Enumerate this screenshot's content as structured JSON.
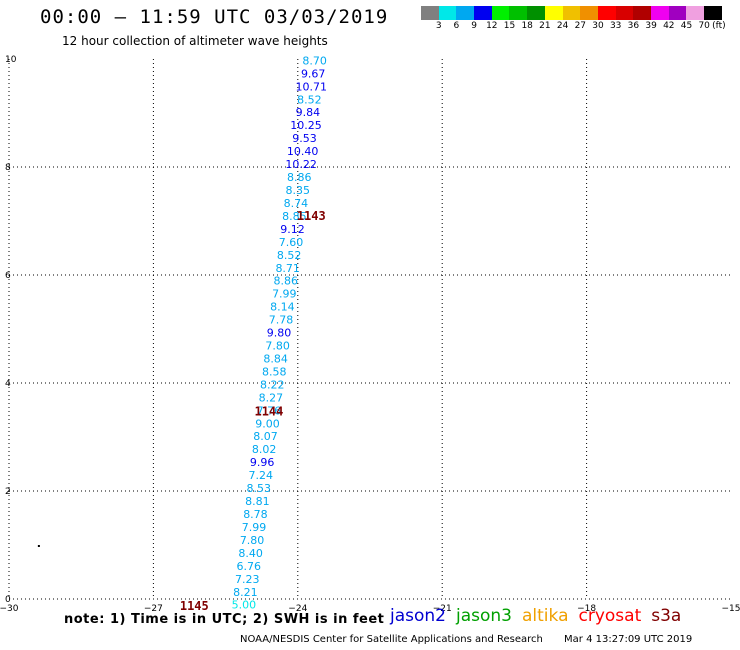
{
  "title": "00:00 – 11:59 UTC 03/03/2019",
  "subtitle": "12 hour collection of altimeter wave heights",
  "colorbar": {
    "colors": [
      "#808080",
      "#00e8e8",
      "#00a8f0",
      "#0000f0",
      "#00f000",
      "#00c000",
      "#009000",
      "#ffff00",
      "#f0c000",
      "#f09000",
      "#ff0000",
      "#d80000",
      "#b00000",
      "#f000f0",
      "#a000c0",
      "#f0a0e0",
      "#000000"
    ],
    "labels": [
      "3",
      "6",
      "9",
      "12",
      "15",
      "18",
      "21",
      "24",
      "27",
      "30",
      "33",
      "36",
      "39",
      "42",
      "45",
      "70",
      "(ft)"
    ]
  },
  "note": "note:  1) Time is in UTC;  2) SWH is in feet",
  "legend": [
    {
      "name": "jason2",
      "color": "#0000d0"
    },
    {
      "name": "jason3",
      "color": "#00a000"
    },
    {
      "name": "altika",
      "color": "#f0a000"
    },
    {
      "name": "cryosat",
      "color": "#ff0000"
    },
    {
      "name": "s3a",
      "color": "#800000"
    }
  ],
  "footer": "NOAA/NESDIS Center for Satellite Applications and Research",
  "footer_timestamp": "Mar  4 13:27:09 UTC 2019",
  "chart_data": {
    "type": "scatter",
    "xlim": [
      -30,
      -15
    ],
    "ylim": [
      0,
      10
    ],
    "xticks": [
      "−30",
      "−27",
      "−24",
      "−21",
      "−18",
      "−15"
    ],
    "yticks": [
      "0",
      "2",
      "4",
      "6",
      "8",
      "10"
    ],
    "grid": true,
    "points": [
      {
        "x": -23.65,
        "y": 9.9,
        "label": "8.70",
        "color": "#00a8f0"
      },
      {
        "x": -23.68,
        "y": 9.66,
        "label": "9.67",
        "color": "#0000f0"
      },
      {
        "x": -23.72,
        "y": 9.42,
        "label": "10.71",
        "color": "#0000f0"
      },
      {
        "x": -23.76,
        "y": 9.18,
        "label": "8.52",
        "color": "#00a8f0"
      },
      {
        "x": -23.79,
        "y": 8.94,
        "label": "9.84",
        "color": "#0000f0"
      },
      {
        "x": -23.83,
        "y": 8.7,
        "label": "10.25",
        "color": "#0000f0"
      },
      {
        "x": -23.86,
        "y": 8.46,
        "label": "9.53",
        "color": "#0000f0"
      },
      {
        "x": -23.9,
        "y": 8.22,
        "label": "10.40",
        "color": "#0000f0"
      },
      {
        "x": -23.93,
        "y": 7.98,
        "label": "10.22",
        "color": "#0000f0"
      },
      {
        "x": -23.97,
        "y": 7.74,
        "label": "8.86",
        "color": "#00a8f0"
      },
      {
        "x": -24.0,
        "y": 7.5,
        "label": "8.35",
        "color": "#00a8f0"
      },
      {
        "x": -24.04,
        "y": 7.26,
        "label": "8.74",
        "color": "#00a8f0"
      },
      {
        "x": -24.07,
        "y": 7.02,
        "label": "8.85",
        "color": "#00a8f0"
      },
      {
        "x": -24.11,
        "y": 6.78,
        "label": "9.12",
        "color": "#0000f0"
      },
      {
        "x": -24.14,
        "y": 6.54,
        "label": "7.60",
        "color": "#00a8f0"
      },
      {
        "x": -24.18,
        "y": 6.3,
        "label": "8.52",
        "color": "#00a8f0"
      },
      {
        "x": -24.21,
        "y": 6.06,
        "label": "8.71",
        "color": "#00a8f0"
      },
      {
        "x": -24.25,
        "y": 5.82,
        "label": "8.86",
        "color": "#00a8f0"
      },
      {
        "x": -24.28,
        "y": 5.58,
        "label": "7.99",
        "color": "#00a8f0"
      },
      {
        "x": -24.32,
        "y": 5.34,
        "label": "8.14",
        "color": "#00a8f0"
      },
      {
        "x": -24.35,
        "y": 5.1,
        "label": "7.78",
        "color": "#00a8f0"
      },
      {
        "x": -24.39,
        "y": 4.86,
        "label": "9.80",
        "color": "#0000f0"
      },
      {
        "x": -24.42,
        "y": 4.62,
        "label": "7.80",
        "color": "#00a8f0"
      },
      {
        "x": -24.46,
        "y": 4.38,
        "label": "8.84",
        "color": "#00a8f0"
      },
      {
        "x": -24.49,
        "y": 4.14,
        "label": "8.58",
        "color": "#00a8f0"
      },
      {
        "x": -24.53,
        "y": 3.9,
        "label": "8.22",
        "color": "#00a8f0"
      },
      {
        "x": -24.56,
        "y": 3.66,
        "label": "8.27",
        "color": "#00a8f0"
      },
      {
        "x": -24.6,
        "y": 3.42,
        "label": "7.76",
        "color": "#00a8f0"
      },
      {
        "x": -24.63,
        "y": 3.18,
        "label": "9.00",
        "color": "#00a8f0"
      },
      {
        "x": -24.67,
        "y": 2.94,
        "label": "8.07",
        "color": "#00a8f0"
      },
      {
        "x": -24.7,
        "y": 2.7,
        "label": "8.02",
        "color": "#00a8f0"
      },
      {
        "x": -24.74,
        "y": 2.46,
        "label": "9.96",
        "color": "#0000f0"
      },
      {
        "x": -24.77,
        "y": 2.22,
        "label": "7.24",
        "color": "#00a8f0"
      },
      {
        "x": -24.81,
        "y": 1.98,
        "label": "8.53",
        "color": "#00a8f0"
      },
      {
        "x": -24.84,
        "y": 1.74,
        "label": "8.81",
        "color": "#00a8f0"
      },
      {
        "x": -24.88,
        "y": 1.5,
        "label": "8.78",
        "color": "#00a8f0"
      },
      {
        "x": -24.91,
        "y": 1.26,
        "label": "7.99",
        "color": "#00a8f0"
      },
      {
        "x": -24.95,
        "y": 1.02,
        "label": "7.80",
        "color": "#00a8f0"
      },
      {
        "x": -24.98,
        "y": 0.78,
        "label": "8.40",
        "color": "#00a8f0"
      },
      {
        "x": -25.02,
        "y": 0.54,
        "label": "6.76",
        "color": "#00a8f0"
      },
      {
        "x": -25.05,
        "y": 0.3,
        "label": "7.23",
        "color": "#00a8f0"
      },
      {
        "x": -25.09,
        "y": 0.06,
        "label": "8.21",
        "color": "#00a8f0"
      },
      {
        "x": -25.12,
        "y": -0.18,
        "label": "5.00",
        "color": "#00e8e8"
      }
    ],
    "passes": [
      {
        "label": "1143",
        "x": -24.02,
        "y": 7.02,
        "color": "#800000"
      },
      {
        "label": "1144",
        "x": -24.9,
        "y": 3.4,
        "color": "#800000"
      },
      {
        "label": "1145",
        "x": -26.45,
        "y": -0.2,
        "color": "#800000"
      }
    ],
    "stray_marks": [
      {
        "x": -29.4,
        "y": 1.0
      }
    ]
  }
}
